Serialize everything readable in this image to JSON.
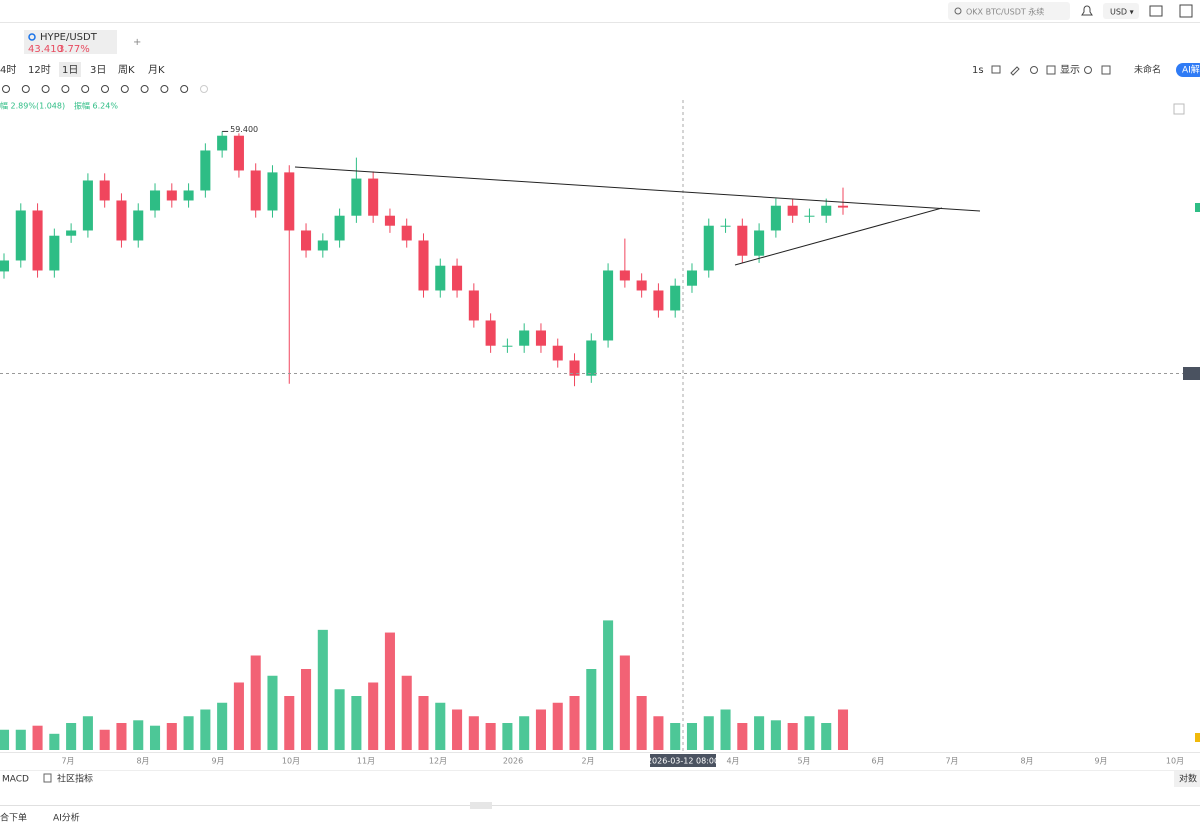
{
  "top_bar": {
    "search": "OKX BTC/USDT 永续",
    "currency": "USD ▾"
  },
  "tab": {
    "symbol": "HYPE/USDT",
    "price": "43.410",
    "change": "3.77%",
    "add": "+"
  },
  "intervals": [
    "4时",
    "12时",
    "1日",
    "3日",
    "周K",
    "月K"
  ],
  "right_tools": {
    "interval": "1s",
    "display": "显示",
    "layout": "未命名",
    "ai": "AI解"
  },
  "info_line": {
    "change": "幅 2.89%(1.048)",
    "amplitude": "振幅 6.24%"
  },
  "crosshair_label": "2026-03-12 08:00",
  "x_axis_labels": [
    "7月",
    "8月",
    "9月",
    "10月",
    "11月",
    "12月",
    "2026",
    "2月",
    "4月",
    "5月",
    "6月",
    "7月",
    "8月",
    "9月",
    "10月"
  ],
  "bottom_row": {
    "macd": "MACD",
    "community": "社区指标",
    "log": "对数"
  },
  "footer": {
    "order": "合下单",
    "ai_analysis": "AI分析"
  },
  "chart_data": {
    "type": "candlestick",
    "up_color": "#2ebd85",
    "down_color": "#f0465d",
    "ylim": [
      3,
      66
    ],
    "vlim": [
      0,
      100
    ],
    "high_annotation": {
      "value": 59.4,
      "label": "59.400"
    },
    "open": [
      30.0,
      32.3,
      42.8,
      30.2,
      37.5,
      38.6,
      49.1,
      44.9,
      36.5,
      42.8,
      47.0,
      44.9,
      47.0,
      55.4,
      58.5,
      51.2,
      42.8,
      50.8,
      38.6,
      34.4,
      36.5,
      41.7,
      49.5,
      41.7,
      39.6,
      36.5,
      26.0,
      31.2,
      26.0,
      19.7,
      14.4,
      14.4,
      17.6,
      14.4,
      11.3,
      8.1,
      15.5,
      30.2,
      28.1,
      26.0,
      21.8,
      27.0,
      30.2,
      39.6,
      39.6,
      33.3,
      38.6,
      43.8,
      41.7,
      41.7,
      43.8
    ],
    "high": [
      33.8,
      44.3,
      44.3,
      39.0,
      40.1,
      50.6,
      50.6,
      46.4,
      44.3,
      48.5,
      48.5,
      48.5,
      56.9,
      59.4,
      59.0,
      52.7,
      52.3,
      52.3,
      40.1,
      38.0,
      43.2,
      53.9,
      51.0,
      43.2,
      41.1,
      38.0,
      32.7,
      32.7,
      27.5,
      21.2,
      15.9,
      19.1,
      19.1,
      15.9,
      12.8,
      17.0,
      31.7,
      36.9,
      29.6,
      27.5,
      28.5,
      31.7,
      41.1,
      41.1,
      41.1,
      40.1,
      45.3,
      45.3,
      43.2,
      45.3,
      47.6
    ],
    "low": [
      28.5,
      30.8,
      28.7,
      28.7,
      36.0,
      37.1,
      43.4,
      35.0,
      35.0,
      41.3,
      43.4,
      43.4,
      45.5,
      53.9,
      49.7,
      41.3,
      41.3,
      6.4,
      32.9,
      32.9,
      35.0,
      40.2,
      40.2,
      38.1,
      35.0,
      24.5,
      24.5,
      24.5,
      18.2,
      12.9,
      12.9,
      12.9,
      12.9,
      9.8,
      5.9,
      6.6,
      14.0,
      26.6,
      24.5,
      20.3,
      20.3,
      25.5,
      28.7,
      38.1,
      31.8,
      31.8,
      37.1,
      40.2,
      40.2,
      40.2,
      41.9
    ],
    "close": [
      32.3,
      42.8,
      30.2,
      37.5,
      38.6,
      49.1,
      44.9,
      36.5,
      42.8,
      47.0,
      44.9,
      47.0,
      55.4,
      58.5,
      51.2,
      42.8,
      50.8,
      38.6,
      34.4,
      36.5,
      41.7,
      49.5,
      41.7,
      39.6,
      36.5,
      26.0,
      31.2,
      26.0,
      19.7,
      14.4,
      14.4,
      17.6,
      14.4,
      11.3,
      8.1,
      15.5,
      30.2,
      28.1,
      26.0,
      21.8,
      27.0,
      30.2,
      39.6,
      39.6,
      33.3,
      38.6,
      43.8,
      41.7,
      41.7,
      43.8,
      43.41
    ],
    "volume": [
      15,
      15,
      18,
      12,
      20,
      25,
      15,
      20,
      22,
      18,
      20,
      25,
      30,
      35,
      50,
      70,
      55,
      40,
      60,
      89,
      45,
      40,
      50,
      87,
      55,
      40,
      35,
      30,
      25,
      20,
      20,
      25,
      30,
      35,
      40,
      60,
      96,
      70,
      40,
      25,
      20,
      20,
      25,
      30,
      20,
      25,
      22,
      20,
      25,
      20,
      30
    ]
  }
}
